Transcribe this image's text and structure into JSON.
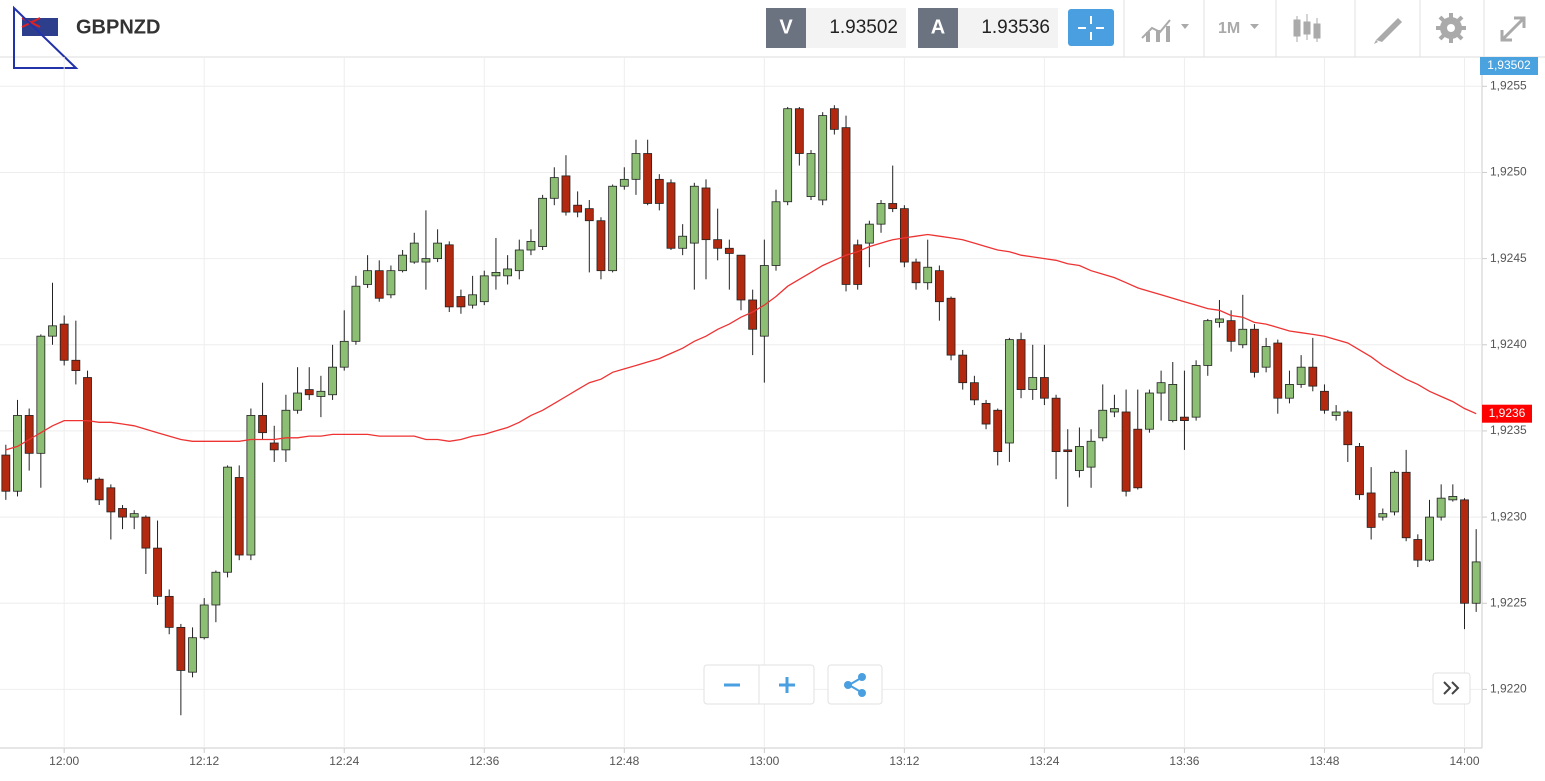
{
  "header": {
    "symbol": "GBPNZD",
    "bid_label": "V",
    "bid": "1.93502",
    "ask_label": "A",
    "ask": "1.93536",
    "timeframe": "1M",
    "bid_badge": "1,93502"
  },
  "chart_data": {
    "type": "candlestick",
    "categories": [
      null,
      null,
      null,
      null,
      null,
      "12:00",
      null,
      null,
      null,
      null,
      null,
      null,
      null,
      null,
      null,
      null,
      null,
      "12:12",
      null,
      null,
      null,
      null,
      null,
      null,
      null,
      null,
      null,
      null,
      null,
      "12:24",
      null,
      null,
      null,
      null,
      null,
      null,
      null,
      null,
      null,
      null,
      null,
      "12:36",
      null,
      null,
      null,
      null,
      null,
      null,
      null,
      null,
      null,
      null,
      null,
      "12:48",
      null,
      null,
      null,
      null,
      null,
      null,
      null,
      null,
      null,
      null,
      null,
      "13:00",
      null,
      null,
      null,
      null,
      null,
      null,
      null,
      null,
      null,
      null,
      null,
      "13:12",
      null,
      null,
      null,
      null,
      null,
      null,
      null,
      null,
      null,
      null,
      null,
      "13:24",
      null,
      null,
      null,
      null,
      null,
      null,
      null,
      null,
      null,
      null,
      null,
      "13:36",
      null,
      null,
      null,
      null,
      null,
      null,
      null,
      null,
      null,
      null,
      null,
      "13:48",
      null,
      null,
      null,
      null,
      null,
      null,
      null,
      null,
      null,
      null,
      null,
      "14:00",
      null
    ],
    "open": [
      1.92336,
      1.92315,
      1.92359,
      1.92337,
      1.92405,
      1.92412,
      1.92391,
      1.92381,
      1.92322,
      1.92317,
      1.92305,
      1.923,
      1.923,
      1.92282,
      1.92254,
      1.92236,
      1.9221,
      1.9223,
      1.92249,
      1.92268,
      1.92323,
      1.92278,
      1.92359,
      1.92343,
      1.92339,
      1.92362,
      1.92374,
      1.9237,
      1.92371,
      1.92387,
      1.92402,
      1.92435,
      1.92443,
      1.92429,
      1.92443,
      1.92448,
      1.92448,
      1.9245,
      1.92458,
      1.92428,
      1.92423,
      1.92425,
      1.9244,
      1.9244,
      1.92443,
      1.92455,
      1.92457,
      1.92485,
      1.92498,
      1.92481,
      1.92479,
      1.92472,
      1.92443,
      1.92492,
      1.92496,
      1.92511,
      1.92496,
      1.92494,
      1.92456,
      1.92459,
      1.92491,
      1.92461,
      1.92456,
      1.92452,
      1.92426,
      1.92405,
      1.92446,
      1.92483,
      1.92537,
      1.92486,
      1.92484,
      1.92537,
      1.92526,
      1.92458,
      1.92459,
      1.9247,
      1.92482,
      1.92479,
      1.92448,
      1.92436,
      1.92443,
      1.92427,
      1.92394,
      1.92378,
      1.92366,
      1.92362,
      1.92343,
      1.92403,
      1.92374,
      1.92381,
      1.92369,
      1.92339,
      1.92327,
      1.92329,
      1.92346,
      1.92361,
      1.92361,
      1.92351,
      1.92351,
      1.92372,
      1.92356,
      1.92358,
      1.92358,
      1.92388,
      1.92413,
      1.92414,
      1.924,
      1.92409,
      1.92387,
      1.92401,
      1.92369,
      1.92377,
      1.92387,
      1.92373,
      1.92359,
      1.92361,
      1.92341,
      1.92314,
      1.923,
      1.92303,
      1.92326,
      1.92287,
      1.92275,
      1.923,
      1.9231,
      1.9231,
      1.9225
    ],
    "high": [
      1.92342,
      1.92368,
      1.92363,
      1.92406,
      1.92436,
      1.92417,
      1.92414,
      1.92385,
      1.92323,
      1.92319,
      1.92307,
      1.92304,
      1.92301,
      1.92298,
      1.92258,
      1.92238,
      1.92236,
      1.92253,
      1.92269,
      1.9233,
      1.9233,
      1.92363,
      1.92378,
      1.92353,
      1.92371,
      1.92387,
      1.92387,
      1.92382,
      1.924,
      1.9242,
      1.9244,
      1.92452,
      1.92449,
      1.92446,
      1.92455,
      1.92465,
      1.92478,
      1.92467,
      1.9246,
      1.92432,
      1.9244,
      1.92443,
      1.92462,
      1.92452,
      1.92461,
      1.92467,
      1.92487,
      1.92503,
      1.9251,
      1.92489,
      1.92484,
      1.92474,
      1.92493,
      1.92503,
      1.92519,
      1.92519,
      1.92499,
      1.92496,
      1.9247,
      1.92494,
      1.92496,
      1.92479,
      1.92461,
      1.92452,
      1.92432,
      1.92461,
      1.9249,
      1.92538,
      1.92538,
      1.92513,
      1.92535,
      1.92539,
      1.92533,
      1.92461,
      1.92472,
      1.92484,
      1.92504,
      1.92481,
      1.9245,
      1.92461,
      1.92446,
      1.92428,
      1.92397,
      1.92382,
      1.92368,
      1.92363,
      1.92404,
      1.92407,
      1.924,
      1.924,
      1.92371,
      1.92351,
      1.92352,
      1.92351,
      1.92377,
      1.92371,
      1.92374,
      1.92374,
      1.92374,
      1.92385,
      1.9239,
      1.92385,
      1.92391,
      1.92415,
      1.92426,
      1.9242,
      1.92429,
      1.92412,
      1.92404,
      1.92403,
      1.92385,
      1.92394,
      1.92404,
      1.92377,
      1.92365,
      1.92362,
      1.92343,
      1.92329,
      1.92305,
      1.92327,
      1.92339,
      1.9229,
      1.9231,
      1.92319,
      1.92319,
      1.92311,
      1.92293
    ],
    "low": [
      1.9231,
      1.92312,
      1.92327,
      1.92317,
      1.924,
      1.92388,
      1.92377,
      1.9232,
      1.92307,
      1.92287,
      1.92293,
      1.92293,
      1.92267,
      1.92249,
      1.92232,
      1.92185,
      1.92207,
      1.92229,
      1.92239,
      1.92265,
      1.92275,
      1.92275,
      1.92345,
      1.92332,
      1.92332,
      1.9236,
      1.92368,
      1.92358,
      1.92368,
      1.92385,
      1.924,
      1.92433,
      1.92425,
      1.92427,
      1.92442,
      1.92447,
      1.92432,
      1.92448,
      1.92419,
      1.92418,
      1.92421,
      1.92423,
      1.92432,
      1.92435,
      1.92438,
      1.92452,
      1.92455,
      1.92481,
      1.92475,
      1.92474,
      1.92442,
      1.92438,
      1.92442,
      1.9249,
      1.92487,
      1.92481,
      1.92478,
      1.92455,
      1.92452,
      1.92432,
      1.92438,
      1.92449,
      1.92432,
      1.9242,
      1.92394,
      1.92378,
      1.92443,
      1.92481,
      1.92504,
      1.92484,
      1.92481,
      1.92522,
      1.92431,
      1.92432,
      1.92445,
      1.92465,
      1.92477,
      1.92445,
      1.92432,
      1.92432,
      1.92414,
      1.92391,
      1.92374,
      1.92365,
      1.92351,
      1.9233,
      1.92332,
      1.92369,
      1.92368,
      1.92365,
      1.92322,
      1.92306,
      1.92323,
      1.92317,
      1.92344,
      1.92358,
      1.92312,
      1.92316,
      1.92349,
      1.92356,
      1.92355,
      1.92339,
      1.92356,
      1.92382,
      1.9241,
      1.92396,
      1.92398,
      1.92381,
      1.92384,
      1.9236,
      1.92366,
      1.92375,
      1.92373,
      1.9236,
      1.92356,
      1.92332,
      1.9231,
      1.92287,
      1.92298,
      1.92301,
      1.92286,
      1.92271,
      1.92274,
      1.92298,
      1.92309,
      1.92235,
      1.92245
    ],
    "close": [
      1.92315,
      1.92359,
      1.92337,
      1.92405,
      1.92411,
      1.92391,
      1.92385,
      1.92322,
      1.9231,
      1.92303,
      1.923,
      1.92302,
      1.92282,
      1.92254,
      1.92236,
      1.92211,
      1.9223,
      1.92249,
      1.92268,
      1.92329,
      1.92278,
      1.92359,
      1.92349,
      1.92339,
      1.92362,
      1.92372,
      1.92371,
      1.92373,
      1.92387,
      1.92402,
      1.92434,
      1.92443,
      1.92427,
      1.92443,
      1.92452,
      1.92459,
      1.9245,
      1.92459,
      1.92422,
      1.92422,
      1.92429,
      1.9244,
      1.92442,
      1.92444,
      1.92455,
      1.9246,
      1.92485,
      1.92497,
      1.92477,
      1.92477,
      1.92472,
      1.92443,
      1.92492,
      1.92496,
      1.92511,
      1.92482,
      1.92482,
      1.92456,
      1.92463,
      1.92492,
      1.92461,
      1.92456,
      1.92453,
      1.92426,
      1.92409,
      1.92446,
      1.92483,
      1.92537,
      1.92511,
      1.92511,
      1.92533,
      1.92525,
      1.92435,
      1.92435,
      1.9247,
      1.92482,
      1.92479,
      1.92448,
      1.92436,
      1.92445,
      1.92425,
      1.92394,
      1.92378,
      1.92368,
      1.92354,
      1.92338,
      1.92403,
      1.92374,
      1.92381,
      1.92369,
      1.92338,
      1.92338,
      1.92341,
      1.92344,
      1.92362,
      1.92363,
      1.92315,
      1.92317,
      1.92372,
      1.92378,
      1.92377,
      1.92356,
      1.92388,
      1.92414,
      1.92415,
      1.92402,
      1.92409,
      1.92384,
      1.92399,
      1.92369,
      1.92377,
      1.92387,
      1.92376,
      1.92362,
      1.92361,
      1.92342,
      1.92313,
      1.92294,
      1.92302,
      1.92326,
      1.92288,
      1.92275,
      1.923,
      1.92311,
      1.92312,
      1.9225,
      1.92274
    ],
    "up_color": "#8cbf73",
    "down_color": "#b3290f",
    "moving_average": {
      "color": "#ee3333",
      "values": [
        1.92339,
        1.92341,
        1.92345,
        1.92349,
        1.92353,
        1.92356,
        1.92356,
        1.92356,
        1.92355,
        1.92355,
        1.92354,
        1.92353,
        1.92351,
        1.92349,
        1.92347,
        1.92345,
        1.92344,
        1.92344,
        1.92344,
        1.92344,
        1.92344,
        1.92345,
        1.92345,
        1.92345,
        1.92346,
        1.92346,
        1.92347,
        1.92347,
        1.92348,
        1.92348,
        1.92348,
        1.92348,
        1.92347,
        1.92347,
        1.92347,
        1.92347,
        1.92345,
        1.92345,
        1.92344,
        1.92345,
        1.92347,
        1.92348,
        1.9235,
        1.92352,
        1.92355,
        1.92359,
        1.92362,
        1.92366,
        1.9237,
        1.92374,
        1.92378,
        1.9238,
        1.92384,
        1.92386,
        1.92388,
        1.9239,
        1.92392,
        1.92395,
        1.92398,
        1.92402,
        1.92405,
        1.92409,
        1.92412,
        1.92416,
        1.92419,
        1.92423,
        1.92428,
        1.92434,
        1.92438,
        1.92442,
        1.92446,
        1.92449,
        1.92452,
        1.92454,
        1.92457,
        1.92459,
        1.92461,
        1.92462,
        1.92463,
        1.92464,
        1.92463,
        1.92462,
        1.92461,
        1.92459,
        1.92457,
        1.92455,
        1.92454,
        1.92452,
        1.92451,
        1.9245,
        1.92449,
        1.92447,
        1.92446,
        1.92443,
        1.92441,
        1.92439,
        1.92436,
        1.92433,
        1.92431,
        1.92429,
        1.92427,
        1.92425,
        1.92423,
        1.92421,
        1.9242,
        1.92417,
        1.92416,
        1.92413,
        1.92412,
        1.9241,
        1.92408,
        1.92407,
        1.92406,
        1.92405,
        1.92403,
        1.92401,
        1.92397,
        1.92393,
        1.92388,
        1.92384,
        1.9238,
        1.92377,
        1.92373,
        1.9237,
        1.92367,
        1.92363,
        1.9236
      ]
    },
    "last_price": {
      "value": 1.9236,
      "label": "1,9236",
      "color": "#ff0000"
    },
    "ylim": [
      1.92166,
      1.92567
    ],
    "yticks": [
      {
        "value": 1.922,
        "label": "1,9220"
      },
      {
        "value": 1.9225,
        "label": "1,9225"
      },
      {
        "value": 1.923,
        "label": "1,9230"
      },
      {
        "value": 1.9235,
        "label": "1,9235"
      },
      {
        "value": 1.924,
        "label": "1,9240"
      },
      {
        "value": 1.9245,
        "label": "1,9245"
      },
      {
        "value": 1.925,
        "label": "1,9250"
      },
      {
        "value": 1.9255,
        "label": "1,9255"
      }
    ],
    "grid": true
  }
}
